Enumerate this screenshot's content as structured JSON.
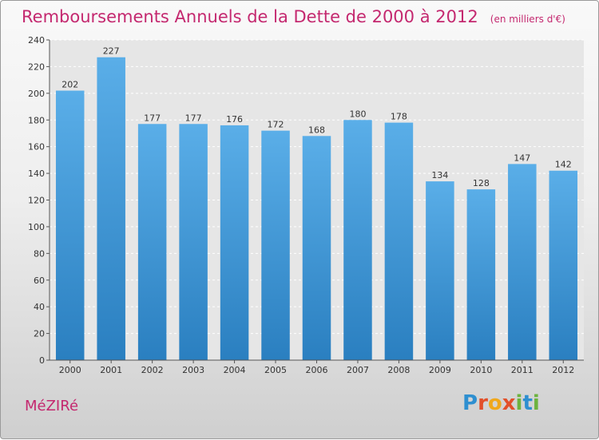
{
  "header": {
    "title": "Remboursements Annuels de la Dette de 2000 à 2012",
    "unit": "(en milliers d'€)"
  },
  "footer": {
    "commune": "MéZIRé",
    "logo_letters": [
      "P",
      "r",
      "o",
      "x",
      "i",
      "t",
      "i"
    ],
    "logo_colors": [
      "#2e8fd0",
      "#e2502a",
      "#f0a81c",
      "#e2502a",
      "#6db33f",
      "#2e8fd0",
      "#6db33f"
    ]
  },
  "colors": {
    "bar_top": "#5aaee8",
    "bar_bottom": "#2a7fc0",
    "accent": "#c4286f",
    "plot_bg": "#e6e6e6"
  },
  "chart_data": {
    "type": "bar",
    "categories": [
      "2000",
      "2001",
      "2002",
      "2003",
      "2004",
      "2005",
      "2006",
      "2007",
      "2008",
      "2009",
      "2010",
      "2011",
      "2012"
    ],
    "values": [
      202,
      227,
      177,
      177,
      176,
      172,
      168,
      180,
      178,
      134,
      128,
      147,
      142
    ],
    "ylim": [
      0,
      240
    ],
    "yticks": [
      0,
      20,
      40,
      60,
      80,
      100,
      120,
      140,
      160,
      180,
      200,
      220,
      240
    ],
    "grid": true,
    "data_labels": true
  }
}
